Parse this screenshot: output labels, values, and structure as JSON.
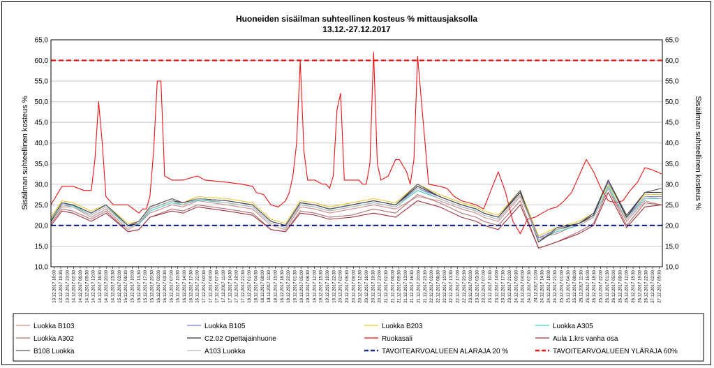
{
  "chart_data": {
    "type": "line",
    "title": "Huoneiden sisäilman suhteellinen kosteus % mittausjaksolla",
    "subtitle": "13.12.-27.12.2017",
    "ylabel": "Sisäilman suhteellinen kosteus %",
    "ylabel_right": "Sisäilman suhteellinen kosteus %",
    "ylim": [
      10,
      65
    ],
    "y_ticks": [
      "10,0",
      "15,0",
      "20,0",
      "25,0",
      "30,0",
      "35,0",
      "40,0",
      "45,0",
      "50,0",
      "55,0",
      "60,0",
      "65,0"
    ],
    "grid": true,
    "legend_position": "bottom",
    "x_tick_labels": [
      "13.12.2017 16:00",
      "13.12.2017 19:30",
      "13.12.2017 23:00",
      "14.12.2017 02:30",
      "14.12.2017 06:00",
      "14.12.2017 09:30",
      "14.12.2017 13:00",
      "14.12.2017 16:30",
      "14.12.2017 20:00",
      "14.12.2017 23:30",
      "15.12.2017 03:00",
      "15.12.2017 06:30",
      "15.12.2017 10:00",
      "15.12.2017 13:30",
      "15.12.2017 17:00",
      "15.12.2017 20:30",
      "16.12.2017 00:00",
      "16.12.2017 03:30",
      "16.12.2017 07:00",
      "16.12.2017 10:30",
      "16.12.2017 14:00",
      "16.12.2017 17:30",
      "16.12.2017 21:00",
      "17.12.2017 00:30",
      "17.12.2017 04:00",
      "17.12.2017 07:30",
      "17.12.2017 11:00",
      "17.12.2017 14:30",
      "17.12.2017 18:00",
      "17.12.2017 21:30",
      "18.12.2017 01:00",
      "18.12.2017 04:30",
      "18.12.2017 08:00",
      "18.12.2017 11:30",
      "18.12.2017 15:00",
      "18.12.2017 18:30",
      "18.12.2017 22:00",
      "19.12.2017 01:30",
      "19.12.2017 05:00",
      "19.12.2017 08:30",
      "19.12.2017 12:00",
      "19.12.2017 15:30",
      "19.12.2017 19:00",
      "19.12.2017 22:30",
      "20.12.2017 02:00",
      "20.12.2017 05:30",
      "20.12.2017 09:00",
      "20.12.2017 12:30",
      "20.12.2017 16:00",
      "20.12.2017 19:30",
      "20.12.2017 23:00",
      "21.12.2017 02:30",
      "21.12.2017 06:00",
      "21.12.2017 09:30",
      "21.12.2017 13:00",
      "21.12.2017 16:30",
      "21.12.2017 20:00",
      "21.12.2017 23:30",
      "22.12.2017 03:00",
      "22.12.2017 06:30",
      "22.12.2017 10:00",
      "22.12.2017 13:30",
      "22.12.2017 17:00",
      "22.12.2017 20:30",
      "23.12.2017 00:00",
      "23.12.2017 03:30",
      "23.12.2017 07:00",
      "23.12.2017 10:30",
      "23.12.2017 14:00",
      "23.12.2017 17:30",
      "23.12.2017 21:00",
      "24.12.2017 00:30",
      "24.12.2017 04:00",
      "24.12.2017 07:30",
      "24.12.2017 11:00",
      "24.12.2017 14:30",
      "24.12.2017 18:00",
      "24.12.2017 21:30",
      "25.12.2017 01:00",
      "25.12.2017 04:30",
      "25.12.2017 08:00",
      "25.12.2017 11:30",
      "25.12.2017 15:00",
      "25.12.2017 18:30",
      "25.12.2017 22:00",
      "26.12.2017 01:30",
      "26.12.2017 05:00",
      "26.12.2017 08:30",
      "26.12.2017 12:00",
      "26.12.2017 15:30",
      "26.12.2017 19:00",
      "26.12.2017 22:30",
      "27.12.2017 02:00",
      "27.12.2017 05:30"
    ],
    "x_range_hours": [
      0,
      333.5
    ],
    "series": [
      {
        "name": "Luokka B103",
        "color": "#d08a8a",
        "dash": "solid",
        "x": [
          0,
          6,
          12,
          22,
          30,
          42,
          48,
          54,
          66,
          72,
          80,
          96,
          110,
          120,
          128,
          136,
          144,
          152,
          164,
          176,
          188,
          200,
          212,
          224,
          232,
          236,
          244,
          256,
          266,
          276,
          288,
          296,
          304,
          314,
          324,
          333
        ],
        "y": [
          21,
          24.5,
          24.5,
          22,
          24,
          19,
          20.5,
          23,
          25,
          24.5,
          26,
          25,
          24,
          20,
          19,
          24.5,
          24,
          23,
          24,
          25,
          24,
          27,
          26,
          24,
          23,
          22,
          21,
          27,
          17,
          18,
          20.5,
          22,
          29,
          21,
          26,
          25
        ]
      },
      {
        "name": "Luokka B105",
        "color": "#7777dd",
        "dash": "solid",
        "x": [
          0,
          6,
          12,
          22,
          30,
          42,
          48,
          54,
          66,
          72,
          80,
          96,
          110,
          120,
          128,
          136,
          144,
          152,
          164,
          176,
          188,
          200,
          212,
          224,
          232,
          236,
          244,
          256,
          266,
          276,
          288,
          296,
          304,
          314,
          324,
          333
        ],
        "y": [
          21.5,
          25,
          25,
          23,
          25,
          20,
          20.5,
          24,
          26,
          25,
          26.5,
          26,
          25,
          21,
          20,
          25.5,
          25,
          24,
          25,
          26,
          25,
          29,
          27,
          25,
          24,
          23,
          22,
          28,
          17,
          19,
          20.5,
          22.5,
          30.5,
          22,
          27,
          27
        ]
      },
      {
        "name": "Luokka B203",
        "color": "#e8c830",
        "dash": "solid",
        "x": [
          0,
          6,
          12,
          22,
          30,
          42,
          48,
          54,
          66,
          72,
          80,
          96,
          110,
          120,
          128,
          136,
          144,
          152,
          164,
          176,
          188,
          200,
          212,
          224,
          232,
          236,
          244,
          256,
          266,
          276,
          288,
          296,
          304,
          314,
          324,
          333
        ],
        "y": [
          22,
          26,
          25.5,
          23.5,
          25,
          20.5,
          21,
          24.5,
          26.5,
          25.5,
          27,
          26.5,
          25.5,
          21.5,
          20.5,
          26,
          25.5,
          24.5,
          25.5,
          26.5,
          25.5,
          30,
          27.5,
          25.5,
          24.5,
          23.5,
          22.5,
          28.5,
          17.5,
          19.5,
          21,
          23,
          30,
          22.5,
          27.5,
          27.5
        ]
      },
      {
        "name": "Luokka A305",
        "color": "#40d0c0",
        "dash": "solid",
        "x": [
          0,
          6,
          12,
          22,
          30,
          42,
          48,
          54,
          66,
          72,
          80,
          96,
          110,
          120,
          128,
          136,
          144,
          152,
          164,
          176,
          188,
          200,
          212,
          224,
          232,
          236,
          244,
          256,
          266,
          276,
          288,
          296,
          304,
          314,
          324,
          333
        ],
        "y": [
          21,
          25,
          24.8,
          22.5,
          24.5,
          20,
          20.3,
          23.5,
          25.5,
          25,
          26.2,
          25.5,
          24.5,
          20.5,
          19.5,
          25,
          24.5,
          23.5,
          24.5,
          25.5,
          24.5,
          28.5,
          26.5,
          24.5,
          23.5,
          22.5,
          21.5,
          27.5,
          16.5,
          18.5,
          20,
          22,
          29.5,
          21.5,
          26.5,
          26.5
        ]
      },
      {
        "name": "Luokka A302",
        "color": "#b07070",
        "dash": "solid",
        "x": [
          0,
          6,
          12,
          22,
          30,
          42,
          48,
          54,
          66,
          72,
          80,
          96,
          110,
          120,
          128,
          136,
          144,
          152,
          164,
          176,
          188,
          200,
          212,
          224,
          232,
          236,
          244,
          256,
          266,
          276,
          288,
          296,
          304,
          314,
          324,
          333
        ],
        "y": [
          20.5,
          24,
          23.5,
          21.5,
          23.5,
          18.5,
          19,
          22,
          24,
          23.5,
          25,
          24,
          23,
          19,
          18.5,
          23.5,
          23,
          22,
          22.5,
          24,
          23,
          27.5,
          25.5,
          23,
          22,
          21,
          20,
          26,
          14.5,
          16,
          18.5,
          20.5,
          29,
          20,
          25.5,
          25
        ]
      },
      {
        "name": "C2.02 Opettajainhuone",
        "color": "#303030",
        "dash": "solid",
        "x": [
          0,
          6,
          12,
          22,
          30,
          42,
          48,
          54,
          66,
          72,
          80,
          96,
          110,
          120,
          128,
          136,
          144,
          152,
          164,
          176,
          188,
          200,
          212,
          224,
          232,
          236,
          244,
          256,
          266,
          276,
          288,
          296,
          304,
          314,
          324,
          333
        ],
        "y": [
          21,
          25.5,
          25,
          23,
          25,
          20,
          20.5,
          24,
          26,
          25.5,
          26.5,
          26,
          25,
          21,
          20,
          25.5,
          25,
          24,
          25,
          26,
          25,
          29.5,
          27,
          25,
          24,
          23,
          22,
          28,
          16,
          19,
          20.5,
          22.5,
          31,
          22,
          28,
          28
        ]
      },
      {
        "name": "Ruokasali",
        "color": "#ee1111",
        "dash": "solid",
        "x": [
          0,
          6,
          12,
          18,
          22,
          24,
          26,
          28,
          30,
          32,
          34,
          42,
          48,
          50,
          52,
          54,
          56,
          58,
          60,
          62,
          66,
          72,
          80,
          84,
          96,
          104,
          110,
          112,
          116,
          120,
          124,
          128,
          130,
          132,
          134,
          136,
          138,
          140,
          144,
          148,
          150,
          152,
          154,
          156,
          158,
          160,
          164,
          168,
          170,
          172,
          174,
          176,
          178,
          180,
          184,
          188,
          190,
          194,
          196,
          198,
          200,
          206,
          212,
          216,
          220,
          224,
          232,
          236,
          244,
          248,
          252,
          256,
          260,
          264,
          268,
          272,
          276,
          280,
          284,
          288,
          292,
          296,
          300,
          304,
          308,
          312,
          316,
          320,
          324,
          328,
          333
        ],
        "y": [
          25,
          29.5,
          29.5,
          28.5,
          28.5,
          36,
          50,
          40,
          27,
          26,
          25,
          25,
          23,
          24,
          24,
          27,
          38,
          55,
          55,
          32,
          31,
          31,
          32,
          31,
          30.5,
          30,
          29.5,
          28,
          27.5,
          25,
          24.5,
          26,
          28,
          32,
          40,
          60,
          38,
          31,
          31,
          30,
          30,
          29,
          32,
          48,
          52,
          31,
          31,
          31,
          30,
          30,
          35,
          62,
          35,
          31,
          32,
          36,
          36,
          33,
          30,
          36,
          61,
          30,
          29.5,
          29,
          27,
          26,
          25,
          24,
          33,
          28,
          21,
          18,
          21.5,
          22,
          23,
          24,
          24.5,
          26,
          28,
          32,
          36,
          33,
          29,
          26,
          25.5,
          26,
          28.5,
          30.5,
          34,
          33.5,
          32.5
        ]
      },
      {
        "name": "Aula 1.krs vanha osa",
        "color": "#a03040",
        "dash": "solid",
        "x": [
          0,
          6,
          12,
          22,
          30,
          42,
          48,
          54,
          66,
          72,
          80,
          96,
          110,
          120,
          128,
          136,
          144,
          152,
          164,
          176,
          188,
          200,
          212,
          224,
          232,
          236,
          244,
          256,
          266,
          276,
          288,
          296,
          304,
          314,
          324,
          333
        ],
        "y": [
          20,
          23.5,
          23,
          21,
          23,
          18.5,
          19,
          22,
          23.5,
          23,
          24.5,
          23.5,
          22.5,
          19,
          18.5,
          23,
          22.5,
          21.5,
          22,
          23,
          22,
          26,
          24.5,
          22,
          21,
          20,
          19,
          25,
          14.5,
          16,
          18,
          20,
          28,
          19.5,
          24.5,
          25
        ]
      },
      {
        "name": "B108 Luokka",
        "color": "#505060",
        "dash": "solid",
        "x": [
          0,
          6,
          12,
          22,
          30,
          42,
          48,
          54,
          66,
          72,
          80,
          96,
          110,
          120,
          128,
          136,
          144,
          152,
          164,
          176,
          188,
          200,
          212,
          224,
          232,
          236,
          244,
          256,
          266,
          276,
          288,
          296,
          304,
          314,
          324,
          333
        ],
        "y": [
          21.5,
          25.5,
          25,
          23,
          25,
          20,
          21,
          24.5,
          26.5,
          25.5,
          26.5,
          26,
          25,
          21,
          20,
          25.5,
          25,
          24,
          25,
          26,
          25,
          30,
          27,
          25,
          24,
          23,
          22,
          28.5,
          16,
          19.5,
          20.5,
          23,
          31,
          22.5,
          28,
          29
        ]
      },
      {
        "name": "A103 Luokka",
        "color": "#b8b8b8",
        "dash": "solid",
        "x": [
          0,
          6,
          12,
          22,
          30,
          42,
          48,
          54,
          66,
          72,
          80,
          96,
          110,
          120,
          128,
          136,
          144,
          152,
          164,
          176,
          188,
          200,
          212,
          224,
          232,
          236,
          244,
          256,
          266,
          276,
          288,
          296,
          304,
          314,
          324,
          333
        ],
        "y": [
          21.5,
          25,
          24.5,
          22.5,
          24.5,
          19.5,
          20.5,
          24,
          26,
          25,
          26.5,
          25.5,
          24.5,
          20.5,
          19.5,
          25,
          24.5,
          23.5,
          24.5,
          25.5,
          24.5,
          29,
          26.5,
          24.5,
          23.5,
          22.5,
          21.5,
          27.5,
          16.5,
          19,
          20,
          22,
          29,
          21.5,
          27,
          26.5
        ]
      },
      {
        "name": "TAVOITEARVOALUEEN ALARAJA 20 %",
        "color": "#1a2a80",
        "dash": "dashed",
        "x": [
          0,
          333.5
        ],
        "y": [
          20,
          20
        ]
      },
      {
        "name": "TAVOITEARVOALUEEN YLÄRAJA 60%",
        "color": "#ee1111",
        "dash": "dashed",
        "x": [
          0,
          333.5
        ],
        "y": [
          60,
          60
        ]
      }
    ]
  }
}
